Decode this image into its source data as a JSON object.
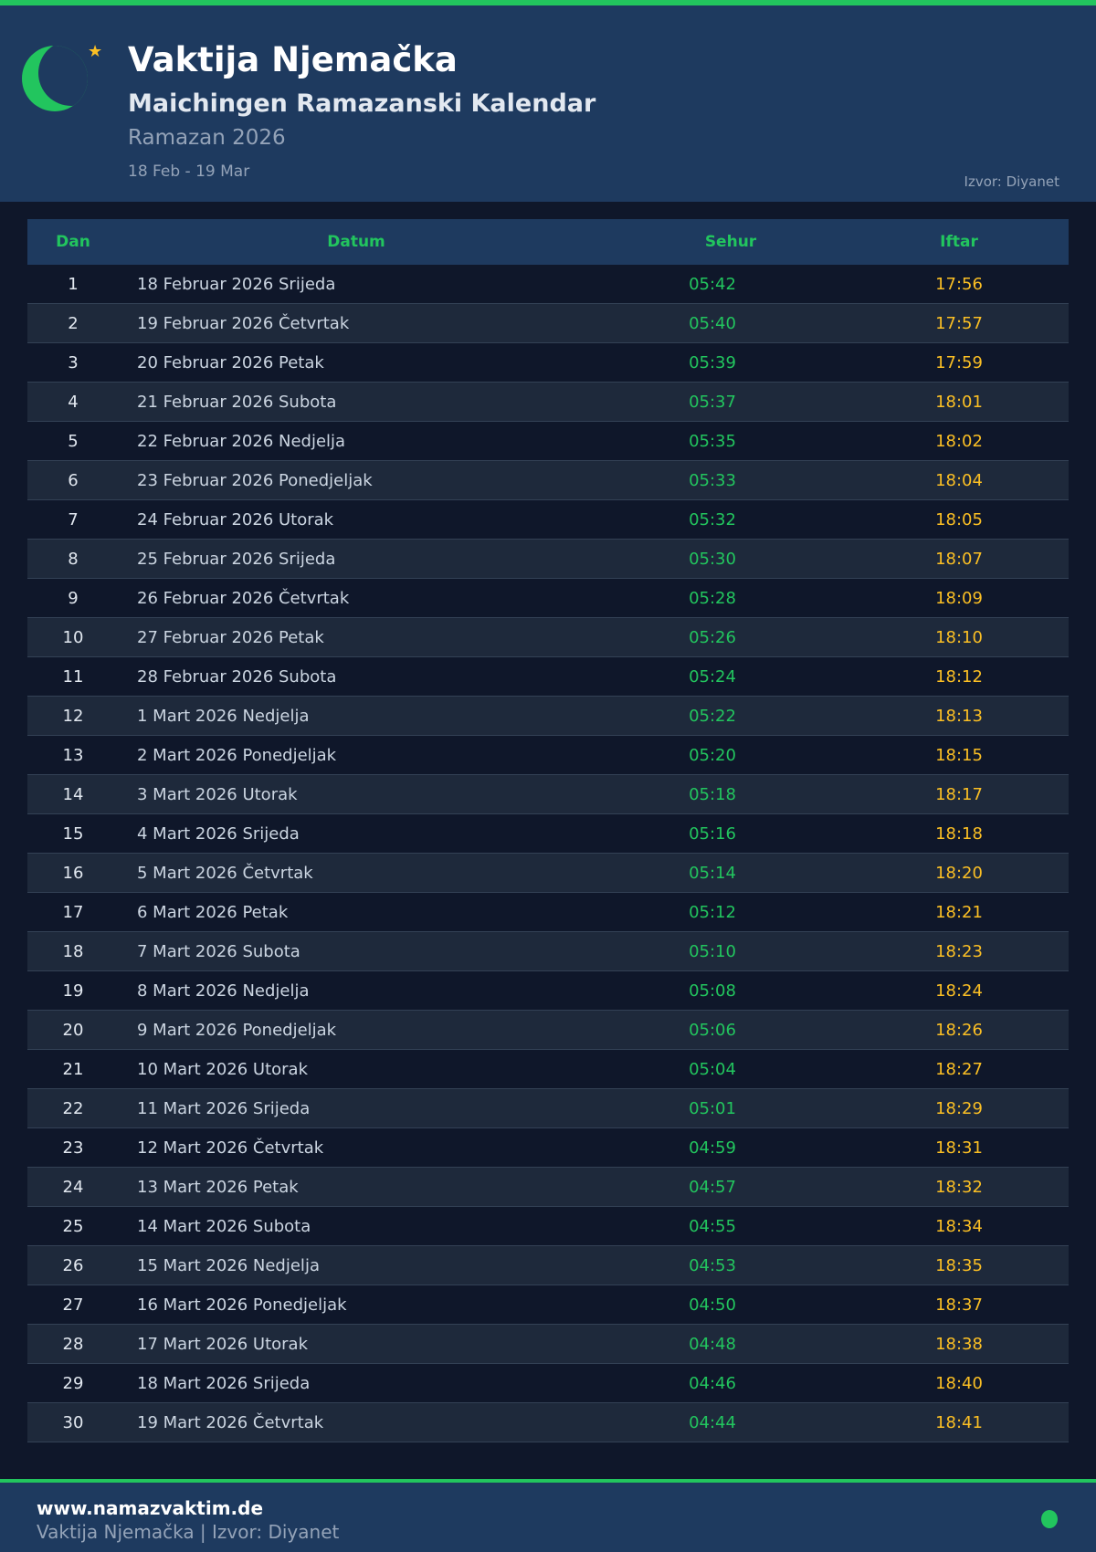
{
  "header": {
    "title": "Vaktija Njemačka",
    "subtitle": "Maichingen Ramazanski Kalendar",
    "ramadan": "Ramazan 2026",
    "range": "18 Feb - 19 Mar",
    "source": "Izvor: Diyanet"
  },
  "table": {
    "headers": [
      "Dan",
      "Datum",
      "Sehur",
      "Iftar"
    ],
    "rows": [
      [
        "1",
        "18 Februar 2026 Srijeda",
        "05:42",
        "17:56"
      ],
      [
        "2",
        "19 Februar 2026 Četvrtak",
        "05:40",
        "17:57"
      ],
      [
        "3",
        "20 Februar 2026 Petak",
        "05:39",
        "17:59"
      ],
      [
        "4",
        "21 Februar 2026 Subota",
        "05:37",
        "18:01"
      ],
      [
        "5",
        "22 Februar 2026 Nedjelja",
        "05:35",
        "18:02"
      ],
      [
        "6",
        "23 Februar 2026 Ponedjeljak",
        "05:33",
        "18:04"
      ],
      [
        "7",
        "24 Februar 2026 Utorak",
        "05:32",
        "18:05"
      ],
      [
        "8",
        "25 Februar 2026 Srijeda",
        "05:30",
        "18:07"
      ],
      [
        "9",
        "26 Februar 2026 Četvrtak",
        "05:28",
        "18:09"
      ],
      [
        "10",
        "27 Februar 2026 Petak",
        "05:26",
        "18:10"
      ],
      [
        "11",
        "28 Februar 2026 Subota",
        "05:24",
        "18:12"
      ],
      [
        "12",
        "1 Mart 2026 Nedjelja",
        "05:22",
        "18:13"
      ],
      [
        "13",
        "2 Mart 2026 Ponedjeljak",
        "05:20",
        "18:15"
      ],
      [
        "14",
        "3 Mart 2026 Utorak",
        "05:18",
        "18:17"
      ],
      [
        "15",
        "4 Mart 2026 Srijeda",
        "05:16",
        "18:18"
      ],
      [
        "16",
        "5 Mart 2026 Četvrtak",
        "05:14",
        "18:20"
      ],
      [
        "17",
        "6 Mart 2026 Petak",
        "05:12",
        "18:21"
      ],
      [
        "18",
        "7 Mart 2026 Subota",
        "05:10",
        "18:23"
      ],
      [
        "19",
        "8 Mart 2026 Nedjelja",
        "05:08",
        "18:24"
      ],
      [
        "20",
        "9 Mart 2026 Ponedjeljak",
        "05:06",
        "18:26"
      ],
      [
        "21",
        "10 Mart 2026 Utorak",
        "05:04",
        "18:27"
      ],
      [
        "22",
        "11 Mart 2026 Srijeda",
        "05:01",
        "18:29"
      ],
      [
        "23",
        "12 Mart 2026 Četvrtak",
        "04:59",
        "18:31"
      ],
      [
        "24",
        "13 Mart 2026 Petak",
        "04:57",
        "18:32"
      ],
      [
        "25",
        "14 Mart 2026 Subota",
        "04:55",
        "18:34"
      ],
      [
        "26",
        "15 Mart 2026 Nedjelja",
        "04:53",
        "18:35"
      ],
      [
        "27",
        "16 Mart 2026 Ponedjeljak",
        "04:50",
        "18:37"
      ],
      [
        "28",
        "17 Mart 2026 Utorak",
        "04:48",
        "18:38"
      ],
      [
        "29",
        "18 Mart 2026 Srijeda",
        "04:46",
        "18:40"
      ],
      [
        "30",
        "19 Mart 2026 Četvrtak",
        "04:44",
        "18:41"
      ]
    ]
  },
  "footer": {
    "site": "www.namazvaktim.de",
    "text": "Vaktija Njemačka | Izvor: Diyanet"
  },
  "colors": {
    "accent": "#22c55e",
    "iftar": "#fbbf24",
    "header_bg": "#1e3a5f",
    "page_bg": "#0f172a"
  },
  "icons": {
    "logo": "crescent-moon-star-icon",
    "status": "status-dot-icon"
  }
}
